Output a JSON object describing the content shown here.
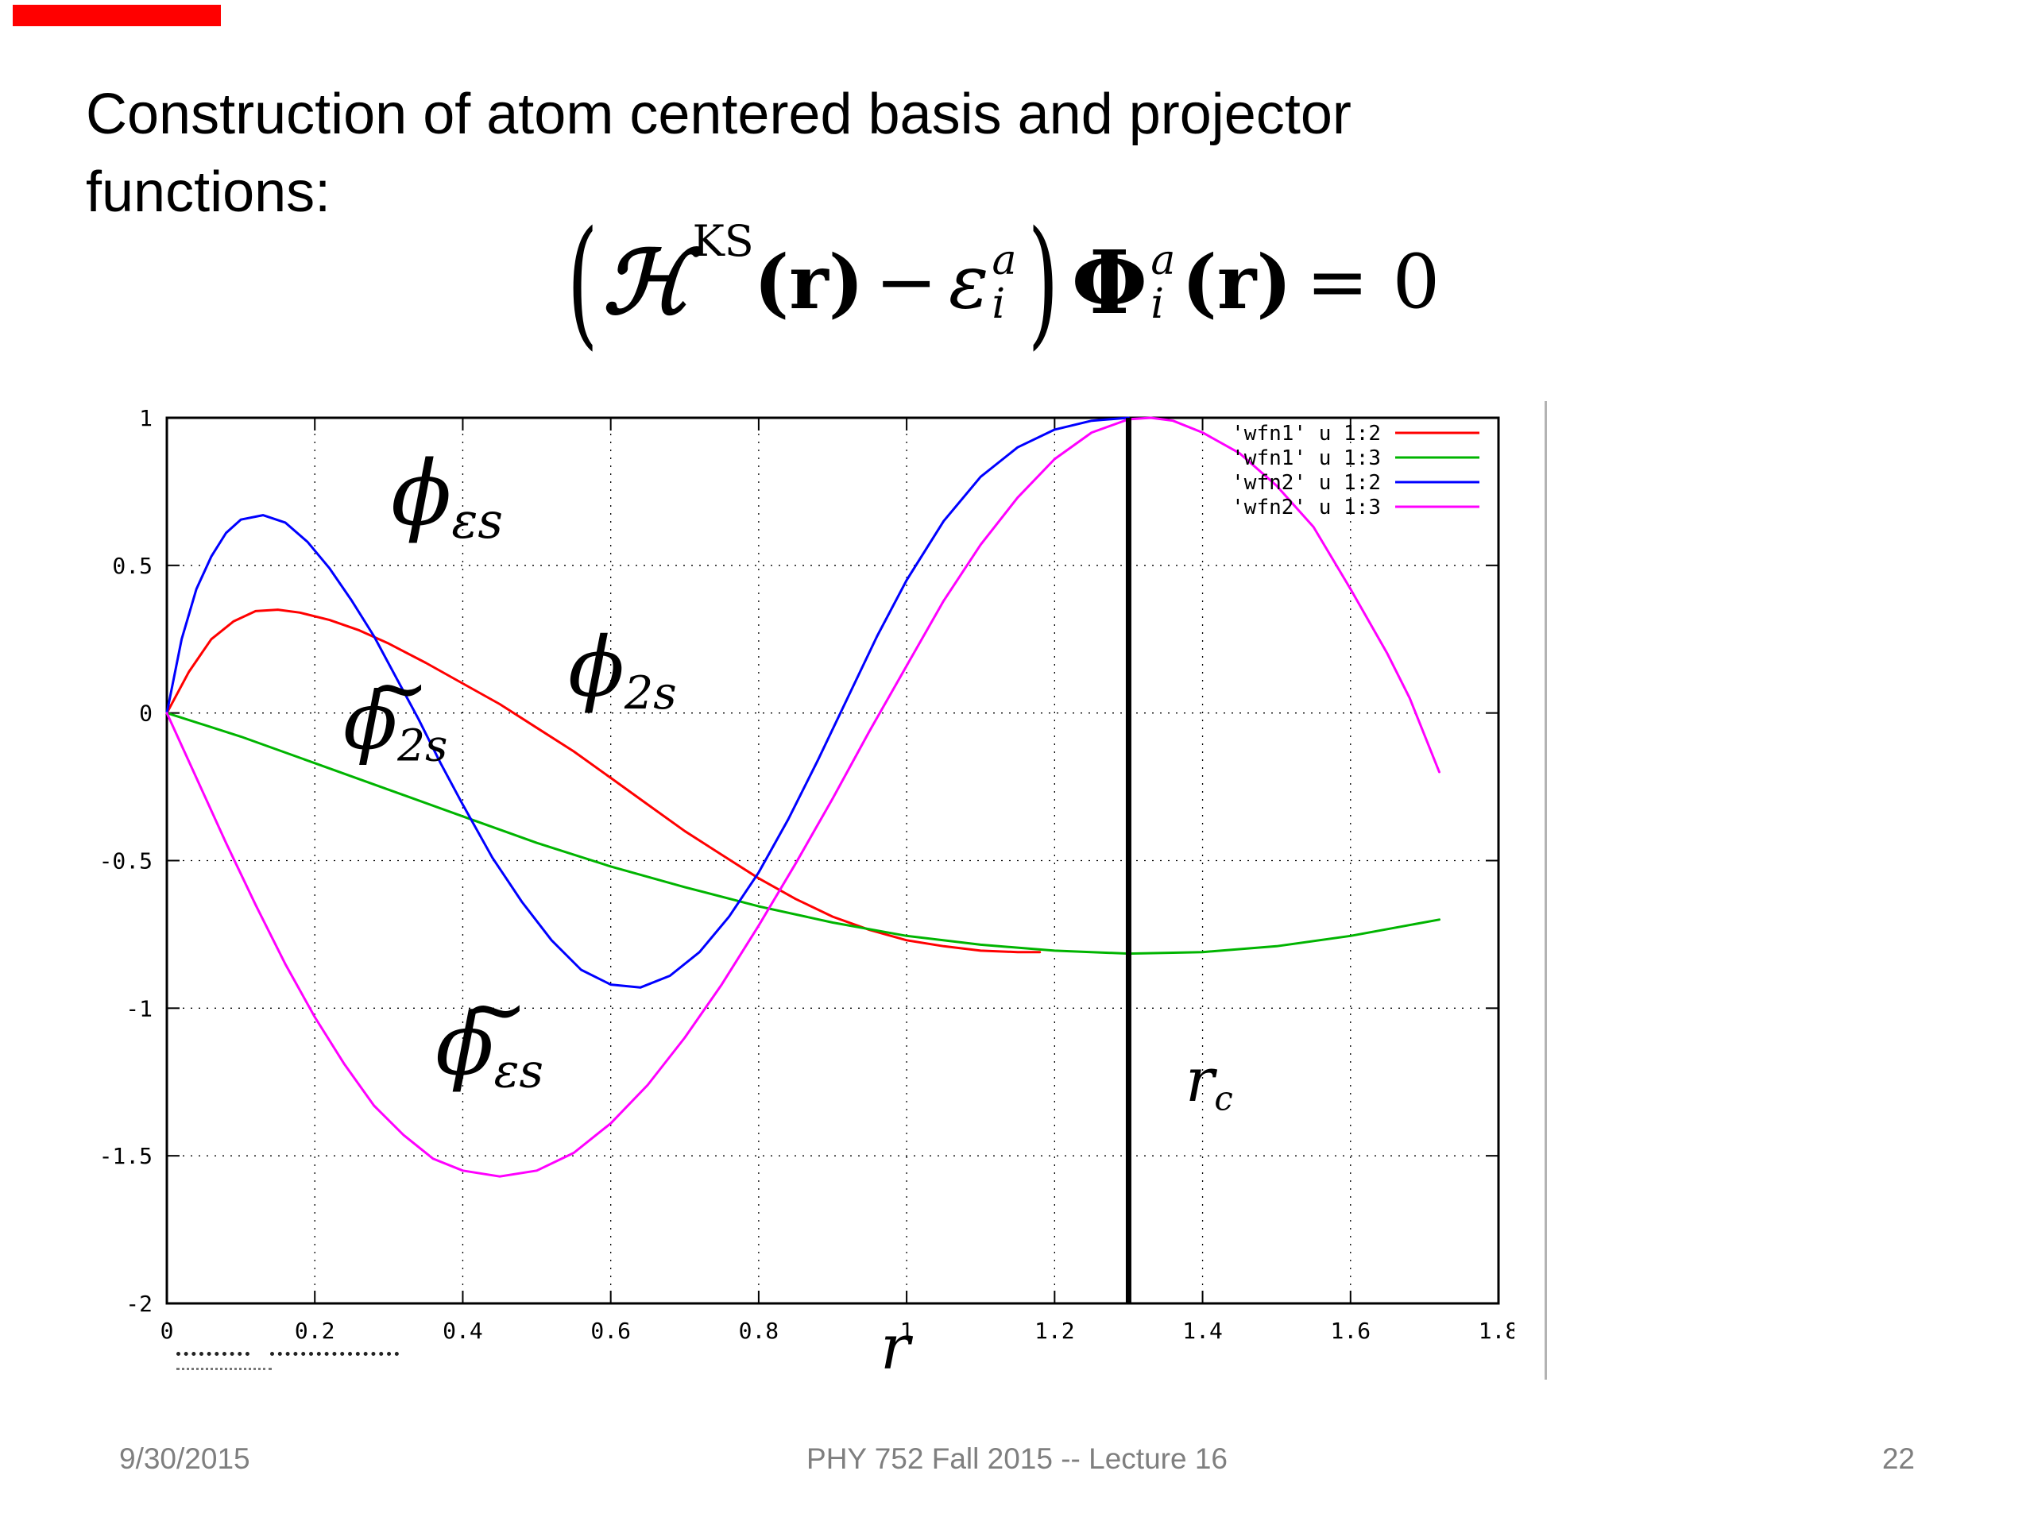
{
  "slide": {
    "title_line1": "Construction of atom centered basis and projector",
    "title_line2": "functions:",
    "footer": {
      "date": "9/30/2015",
      "center": "PHY 752  Fall 2015 -- Lecture 16",
      "page": "22"
    },
    "accent_color": "#ff0000"
  },
  "equation": {
    "lparen": "(",
    "hamiltonian": "ℋ",
    "hamiltonian_sup": "KS",
    "arg1": "(r)",
    "minus": "−",
    "epsilon": "ε",
    "epsilon_sup": "a",
    "epsilon_sub": "i",
    "rparen": ")",
    "phi": "Φ",
    "phi_sup": "a",
    "phi_sub": "i",
    "arg2": "(r)",
    "equals": "= 0"
  },
  "plot_labels": {
    "phi_es": {
      "base": "ϕ",
      "sub": "εs"
    },
    "phi_2s": {
      "base": "ϕ",
      "sub": "2s"
    },
    "phi_2s_tilde": {
      "tilde": "~",
      "base": "ϕ",
      "sub": "2s"
    },
    "phi_es_tilde": {
      "tilde": "~",
      "base": "ϕ",
      "sub": "εs"
    },
    "r_c": {
      "base": "r",
      "sub": "c"
    },
    "x_axis": "r"
  },
  "chart_data": {
    "type": "line",
    "title": "",
    "xlabel": "r",
    "ylabel": "",
    "xlim": [
      0,
      1.8
    ],
    "ylim": [
      -2,
      1
    ],
    "grid": true,
    "legend_position": "top-right",
    "xticks": {
      "values": [
        0,
        0.2,
        0.4,
        0.6,
        0.8,
        1.0,
        1.2,
        1.4,
        1.6,
        1.8
      ],
      "labels": [
        "0",
        "0.2",
        "0.4",
        "0.6",
        "0.8",
        "1",
        "1.2",
        "1.4",
        "1.6",
        "1.8"
      ]
    },
    "yticks": {
      "values": [
        1,
        0.5,
        0,
        -0.5,
        -1,
        -1.5,
        -2
      ],
      "labels": [
        "1",
        "0.5",
        "0",
        "-0.5",
        "-1",
        "-1.5",
        "-2"
      ]
    },
    "vline": {
      "x": 1.3,
      "color": "#000000",
      "label": "r_c"
    },
    "series": [
      {
        "name": "'wfn1' u 1:2",
        "label": "phi_2s",
        "color": "#ff0000",
        "points": [
          [
            0,
            0
          ],
          [
            0.03,
            0.14
          ],
          [
            0.06,
            0.25
          ],
          [
            0.09,
            0.31
          ],
          [
            0.12,
            0.345
          ],
          [
            0.15,
            0.35
          ],
          [
            0.18,
            0.34
          ],
          [
            0.22,
            0.315
          ],
          [
            0.26,
            0.28
          ],
          [
            0.3,
            0.235
          ],
          [
            0.35,
            0.17
          ],
          [
            0.4,
            0.1
          ],
          [
            0.45,
            0.03
          ],
          [
            0.5,
            -0.05
          ],
          [
            0.55,
            -0.13
          ],
          [
            0.6,
            -0.22
          ],
          [
            0.65,
            -0.31
          ],
          [
            0.7,
            -0.4
          ],
          [
            0.75,
            -0.48
          ],
          [
            0.8,
            -0.56
          ],
          [
            0.85,
            -0.63
          ],
          [
            0.9,
            -0.69
          ],
          [
            0.95,
            -0.735
          ],
          [
            1.0,
            -0.77
          ],
          [
            1.05,
            -0.79
          ],
          [
            1.1,
            -0.805
          ],
          [
            1.15,
            -0.81
          ],
          [
            1.18,
            -0.81
          ]
        ]
      },
      {
        "name": "'wfn1' u 1:3",
        "label": "phi_2s_tilde",
        "color": "#00b400",
        "points": [
          [
            0,
            0
          ],
          [
            0.1,
            -0.08
          ],
          [
            0.2,
            -0.17
          ],
          [
            0.3,
            -0.26
          ],
          [
            0.4,
            -0.35
          ],
          [
            0.5,
            -0.44
          ],
          [
            0.6,
            -0.52
          ],
          [
            0.7,
            -0.59
          ],
          [
            0.8,
            -0.655
          ],
          [
            0.9,
            -0.71
          ],
          [
            1.0,
            -0.755
          ],
          [
            1.1,
            -0.785
          ],
          [
            1.2,
            -0.805
          ],
          [
            1.3,
            -0.815
          ],
          [
            1.4,
            -0.81
          ],
          [
            1.5,
            -0.79
          ],
          [
            1.6,
            -0.755
          ],
          [
            1.72,
            -0.7
          ]
        ]
      },
      {
        "name": "'wfn2' u 1:2",
        "label": "phi_es",
        "color": "#0000ff",
        "points": [
          [
            0,
            0
          ],
          [
            0.02,
            0.25
          ],
          [
            0.04,
            0.42
          ],
          [
            0.06,
            0.53
          ],
          [
            0.08,
            0.61
          ],
          [
            0.1,
            0.655
          ],
          [
            0.13,
            0.67
          ],
          [
            0.16,
            0.645
          ],
          [
            0.19,
            0.58
          ],
          [
            0.22,
            0.49
          ],
          [
            0.25,
            0.38
          ],
          [
            0.28,
            0.26
          ],
          [
            0.31,
            0.12
          ],
          [
            0.34,
            -0.02
          ],
          [
            0.37,
            -0.17
          ],
          [
            0.4,
            -0.31
          ],
          [
            0.44,
            -0.49
          ],
          [
            0.48,
            -0.64
          ],
          [
            0.52,
            -0.77
          ],
          [
            0.56,
            -0.87
          ],
          [
            0.6,
            -0.92
          ],
          [
            0.64,
            -0.93
          ],
          [
            0.68,
            -0.89
          ],
          [
            0.72,
            -0.81
          ],
          [
            0.76,
            -0.69
          ],
          [
            0.8,
            -0.54
          ],
          [
            0.84,
            -0.36
          ],
          [
            0.88,
            -0.16
          ],
          [
            0.92,
            0.05
          ],
          [
            0.96,
            0.26
          ],
          [
            1.0,
            0.45
          ],
          [
            1.05,
            0.65
          ],
          [
            1.1,
            0.8
          ],
          [
            1.15,
            0.9
          ],
          [
            1.2,
            0.96
          ],
          [
            1.25,
            0.99
          ],
          [
            1.3,
            1.0
          ]
        ]
      },
      {
        "name": "'wfn2' u 1:3",
        "label": "phi_es_tilde",
        "color": "#ff00ff",
        "points": [
          [
            0,
            0
          ],
          [
            0.04,
            -0.22
          ],
          [
            0.08,
            -0.44
          ],
          [
            0.12,
            -0.65
          ],
          [
            0.16,
            -0.85
          ],
          [
            0.2,
            -1.03
          ],
          [
            0.24,
            -1.19
          ],
          [
            0.28,
            -1.33
          ],
          [
            0.32,
            -1.43
          ],
          [
            0.36,
            -1.51
          ],
          [
            0.4,
            -1.55
          ],
          [
            0.45,
            -1.57
          ],
          [
            0.5,
            -1.55
          ],
          [
            0.55,
            -1.49
          ],
          [
            0.6,
            -1.39
          ],
          [
            0.65,
            -1.26
          ],
          [
            0.7,
            -1.1
          ],
          [
            0.75,
            -0.92
          ],
          [
            0.8,
            -0.72
          ],
          [
            0.85,
            -0.51
          ],
          [
            0.9,
            -0.29
          ],
          [
            0.95,
            -0.06
          ],
          [
            1.0,
            0.16
          ],
          [
            1.05,
            0.38
          ],
          [
            1.1,
            0.57
          ],
          [
            1.15,
            0.73
          ],
          [
            1.2,
            0.86
          ],
          [
            1.25,
            0.95
          ],
          [
            1.3,
            0.995
          ],
          [
            1.33,
            1.0
          ],
          [
            1.36,
            0.99
          ],
          [
            1.4,
            0.95
          ],
          [
            1.45,
            0.88
          ],
          [
            1.5,
            0.77
          ],
          [
            1.55,
            0.63
          ],
          [
            1.6,
            0.42
          ],
          [
            1.65,
            0.2
          ],
          [
            1.68,
            0.05
          ],
          [
            1.72,
            -0.2
          ]
        ]
      }
    ]
  }
}
